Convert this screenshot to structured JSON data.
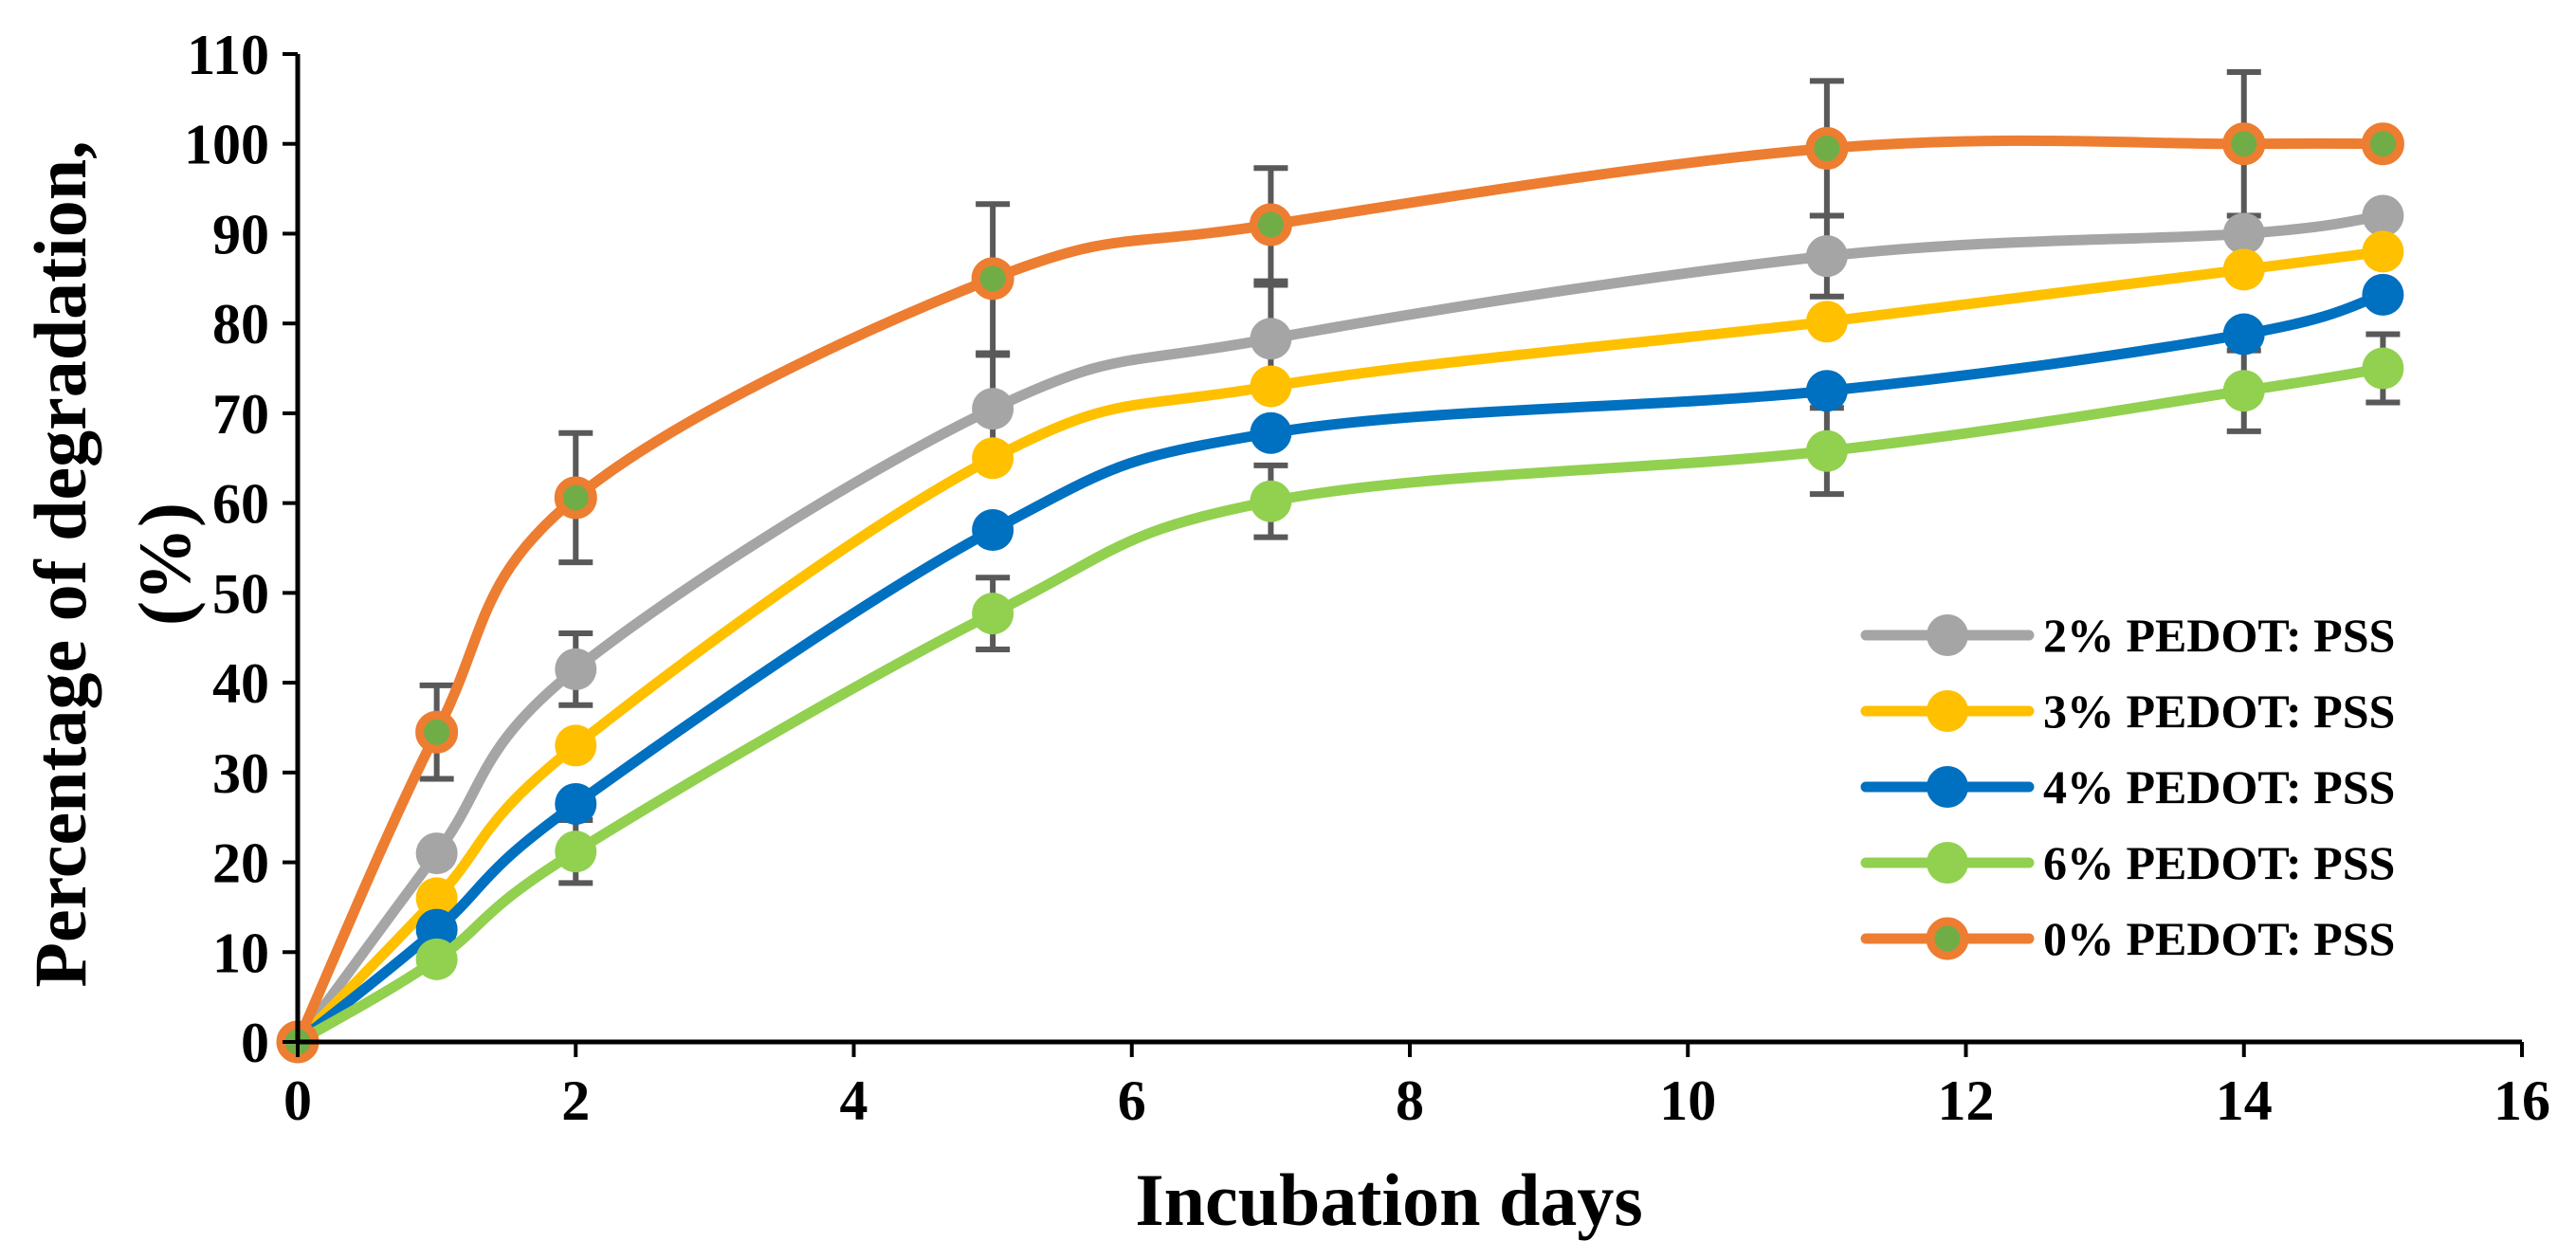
{
  "chart_data": {
    "type": "line",
    "title": "",
    "xlabel": "Incubation days",
    "ylabel": "Percentage of degradation, (%)",
    "xlim": [
      0,
      16
    ],
    "ylim": [
      0,
      110
    ],
    "x_ticks": [
      0,
      2,
      4,
      6,
      8,
      10,
      12,
      14,
      16
    ],
    "y_ticks": [
      0,
      10,
      20,
      30,
      40,
      50,
      60,
      70,
      80,
      90,
      100,
      110
    ],
    "grid": false,
    "legend_position": "right",
    "x": [
      0,
      1,
      2,
      5,
      7,
      11,
      14,
      15
    ],
    "series": [
      {
        "name": "2% PEDOT: PSS",
        "color": "#A5A5A5",
        "values": [
          0,
          21,
          41.5,
          70.5,
          78.3,
          87.5,
          90,
          92
        ],
        "errors": [
          0,
          0,
          4,
          6,
          6,
          4.5,
          0,
          0
        ]
      },
      {
        "name": "3% PEDOT: PSS",
        "color": "#FFC000",
        "values": [
          0,
          16,
          33,
          65,
          73,
          80.2,
          86,
          88
        ],
        "errors": [
          0,
          0,
          0,
          0,
          0,
          0,
          0,
          0
        ]
      },
      {
        "name": "4% PEDOT: PSS",
        "color": "#0070C0",
        "values": [
          0,
          12.5,
          26.5,
          57,
          67.8,
          72.5,
          78.8,
          83.2
        ],
        "errors": [
          0,
          0,
          0,
          0,
          0,
          0,
          0,
          0
        ]
      },
      {
        "name": "6% PEDOT: PSS",
        "color": "#92D050",
        "values": [
          0,
          9.2,
          21.2,
          47.7,
          60.2,
          65.8,
          72.5,
          75
        ],
        "errors": [
          0,
          0,
          3.5,
          4,
          4,
          4.8,
          4.5,
          3.8
        ]
      },
      {
        "name": "0% PEDOT: PSS",
        "color": "#ED7D31",
        "marker_fill": "#70AD47",
        "values": [
          0,
          34.5,
          60.6,
          85,
          91,
          99.5,
          100,
          100
        ],
        "errors": [
          0,
          5.2,
          7.2,
          8.3,
          6.3,
          7.5,
          8,
          0
        ]
      }
    ]
  }
}
